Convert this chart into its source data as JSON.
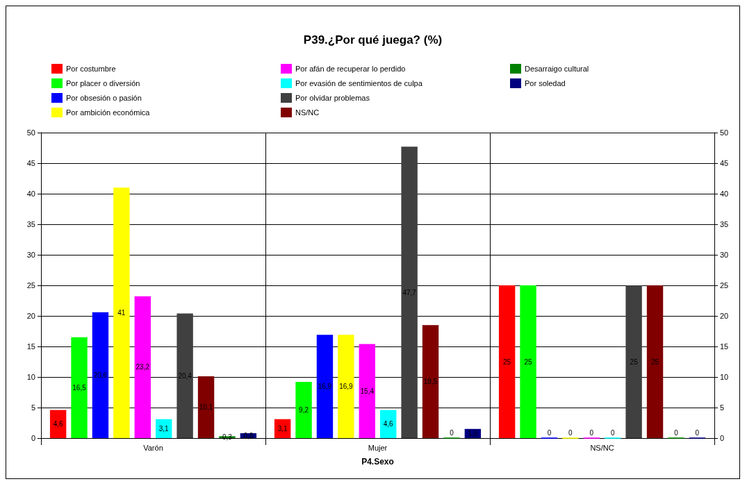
{
  "chart_data": {
    "type": "bar",
    "title": "P39.¿Por qué juega? (%)",
    "xlabel": "P4.Sexo",
    "categories": [
      "Varón",
      "Mujer",
      "NS/NC"
    ],
    "series": [
      {
        "name": "Por costumbre",
        "color": "#ff0000",
        "values": [
          4.6,
          3.1,
          25
        ],
        "value_labels": [
          "4,6",
          "3,1",
          "25"
        ]
      },
      {
        "name": "Por placer o diversión",
        "color": "#00ff00",
        "values": [
          16.5,
          9.2,
          25
        ],
        "value_labels": [
          "16,5",
          "9,2",
          "25"
        ]
      },
      {
        "name": "Por obsesión o pasión",
        "color": "#0000ff",
        "values": [
          20.6,
          16.9,
          0
        ],
        "value_labels": [
          "20,6",
          "16,9",
          "0"
        ]
      },
      {
        "name": "Por ambición económica",
        "color": "#ffff00",
        "values": [
          41,
          16.9,
          0
        ],
        "value_labels": [
          "41",
          "16,9",
          "0"
        ]
      },
      {
        "name": "Por afán de recuperar lo perdido",
        "color": "#ff00ff",
        "values": [
          23.2,
          15.4,
          0
        ],
        "value_labels": [
          "23,2",
          "15,4",
          "0"
        ]
      },
      {
        "name": "Por evasión de sentimientos de culpa",
        "color": "#00ffff",
        "values": [
          3.1,
          4.6,
          0
        ],
        "value_labels": [
          "3,1",
          "4,6",
          "0"
        ]
      },
      {
        "name": "Por olvidar problemas",
        "color": "#404040",
        "values": [
          20.4,
          47.7,
          25
        ],
        "value_labels": [
          "20,4",
          "47,7",
          "25"
        ]
      },
      {
        "name": "NS/NC",
        "color": "#800000",
        "values": [
          10.1,
          18.5,
          25
        ],
        "value_labels": [
          "10,1",
          "18,5",
          "25"
        ]
      },
      {
        "name": "Desarraigo cultural",
        "color": "#008000",
        "values": [
          0.3,
          0,
          0
        ],
        "value_labels": [
          "0,3",
          "0",
          "0"
        ]
      },
      {
        "name": "Por soledad",
        "color": "#000080",
        "values": [
          0.8,
          1.5,
          0
        ],
        "value_labels": [
          "0,8",
          "1,5",
          "0"
        ]
      }
    ],
    "ylim": [
      0,
      50
    ],
    "yticks": [
      0,
      5,
      10,
      15,
      20,
      25,
      30,
      35,
      40,
      45,
      50
    ],
    "y2lim": [
      0,
      50
    ],
    "y2ticks": [
      0,
      5,
      10,
      15,
      20,
      25,
      30,
      35,
      40,
      45,
      50
    ],
    "grid": true,
    "legend": "top left"
  }
}
